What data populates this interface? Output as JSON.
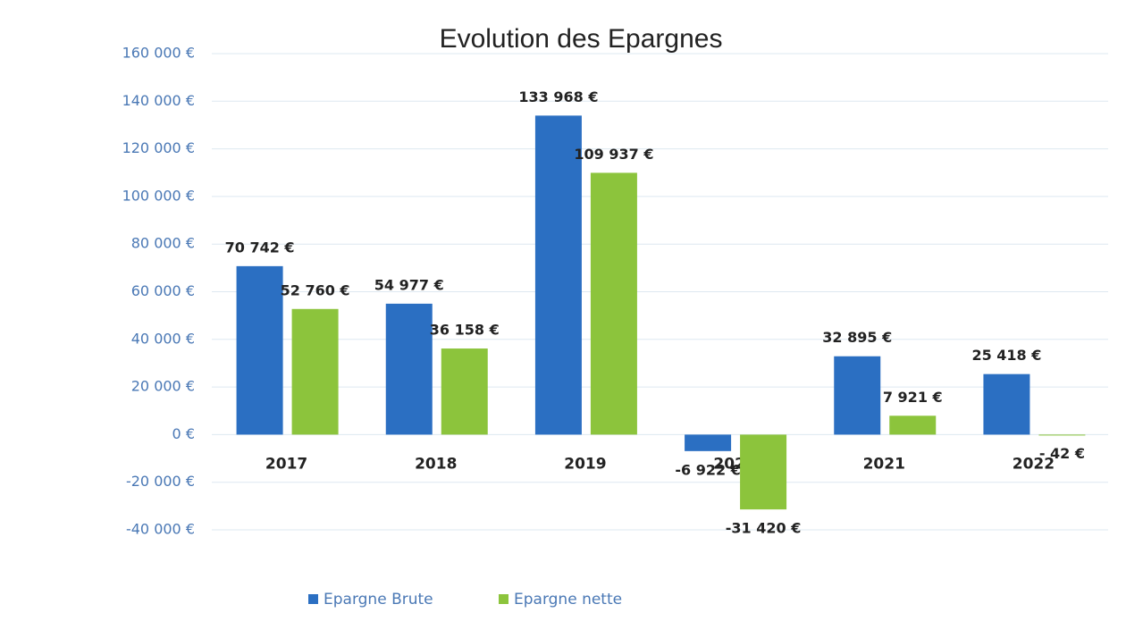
{
  "chart_data": {
    "type": "bar",
    "title": "Evolution des Epargnes",
    "categories": [
      "2017",
      "2018",
      "2019",
      "2020",
      "2021",
      "2022"
    ],
    "series": [
      {
        "name": "Epargne Brute",
        "color": "#2b6fc2",
        "values": [
          70742,
          54977,
          133968,
          -6922,
          32895,
          25418
        ],
        "value_labels": [
          "70 742 €",
          "54 977 €",
          "133 968 €",
          "-6 922 €",
          "32 895 €",
          "25 418 €"
        ]
      },
      {
        "name": "Epargne nette",
        "color": "#8cc43c",
        "values": [
          52760,
          36158,
          109937,
          -31420,
          7921,
          -42
        ],
        "value_labels": [
          "52 760 €",
          "36 158 €",
          "109 937 €",
          "-31 420 €",
          "7 921 €",
          "- 42 €"
        ]
      }
    ],
    "ylim": [
      -40000,
      160000
    ],
    "yticks": [
      {
        "value": -40000,
        "label": "-40 000 €"
      },
      {
        "value": -20000,
        "label": "-20 000 €"
      },
      {
        "value": 0,
        "label": "0 €"
      },
      {
        "value": 20000,
        "label": "20 000 €"
      },
      {
        "value": 40000,
        "label": "40 000 €"
      },
      {
        "value": 60000,
        "label": "60 000 €"
      },
      {
        "value": 80000,
        "label": "80 000 €"
      },
      {
        "value": 100000,
        "label": "100 000 €"
      },
      {
        "value": 120000,
        "label": "120 000 €"
      },
      {
        "value": 140000,
        "label": "140 000 €"
      },
      {
        "value": 160000,
        "label": "160 000 €"
      }
    ],
    "grid": true,
    "legend": "bottom"
  }
}
